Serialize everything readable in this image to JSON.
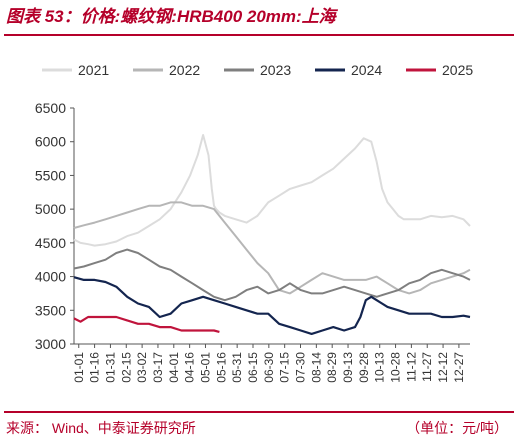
{
  "title": "图表 53：价格:螺纹钢:HRB400 20mm:上海",
  "source": "来源：  Wind、中泰证券研究所",
  "unit": "（单位：元/吨）",
  "colors": {
    "accent": "#b5002a",
    "axis": "#555555",
    "series": {
      "2021": "#dcdcdc",
      "2022": "#b6b6b6",
      "2023": "#7f7f7f",
      "2024": "#14254f",
      "2025": "#c0143c"
    }
  },
  "chart_data": {
    "type": "line",
    "xlabel": "",
    "ylabel": "",
    "ylim": [
      3000,
      6500
    ],
    "yticks": [
      3000,
      3500,
      4000,
      4500,
      5000,
      5500,
      6000,
      6500
    ],
    "x_day_range": [
      1,
      366
    ],
    "x_tick_labels": [
      "01-01",
      "01-16",
      "01-31",
      "02-15",
      "03-02",
      "03-17",
      "04-01",
      "04-16",
      "05-01",
      "05-16",
      "05-31",
      "06-15",
      "06-30",
      "07-15",
      "07-30",
      "08-14",
      "08-29",
      "09-13",
      "09-28",
      "10-13",
      "10-28",
      "11-12",
      "11-27",
      "12-12",
      "12-27"
    ],
    "legend_position": "top",
    "grid": false,
    "series": [
      {
        "name": "2021",
        "x": [
          1,
          7,
          14,
          20,
          30,
          40,
          50,
          60,
          70,
          80,
          90,
          100,
          108,
          115,
          120,
          125,
          128,
          130,
          132,
          135,
          140,
          150,
          160,
          170,
          180,
          190,
          200,
          210,
          220,
          230,
          240,
          250,
          260,
          268,
          275,
          280,
          285,
          290,
          295,
          300,
          305,
          310,
          320,
          330,
          340,
          350,
          360,
          366
        ],
        "values": [
          4550,
          4500,
          4480,
          4460,
          4480,
          4520,
          4600,
          4650,
          4750,
          4850,
          5000,
          5250,
          5500,
          5800,
          6100,
          5800,
          5300,
          5050,
          5000,
          4950,
          4900,
          4850,
          4800,
          4900,
          5100,
          5200,
          5300,
          5350,
          5400,
          5500,
          5600,
          5750,
          5900,
          6050,
          6000,
          5700,
          5300,
          5100,
          5000,
          4900,
          4850,
          4850,
          4850,
          4900,
          4880,
          4900,
          4850,
          4750
        ]
      },
      {
        "name": "2022",
        "x": [
          1,
          10,
          20,
          30,
          40,
          50,
          60,
          70,
          80,
          90,
          100,
          110,
          120,
          130,
          140,
          150,
          160,
          170,
          180,
          190,
          200,
          210,
          220,
          230,
          240,
          250,
          260,
          270,
          280,
          290,
          300,
          310,
          320,
          330,
          340,
          350,
          360,
          366
        ],
        "values": [
          4720,
          4760,
          4800,
          4850,
          4900,
          4950,
          5000,
          5050,
          5050,
          5100,
          5100,
          5050,
          5050,
          5000,
          4800,
          4600,
          4400,
          4200,
          4050,
          3800,
          3750,
          3850,
          3950,
          4050,
          4000,
          3950,
          3950,
          3950,
          4000,
          3900,
          3800,
          3750,
          3800,
          3900,
          3950,
          4000,
          4050,
          4100
        ]
      },
      {
        "name": "2023",
        "x": [
          1,
          10,
          20,
          30,
          40,
          50,
          60,
          70,
          80,
          90,
          100,
          110,
          120,
          130,
          140,
          150,
          160,
          170,
          180,
          190,
          200,
          210,
          220,
          230,
          240,
          250,
          260,
          270,
          280,
          290,
          300,
          310,
          320,
          330,
          340,
          350,
          360,
          366
        ],
        "values": [
          4120,
          4150,
          4200,
          4250,
          4350,
          4400,
          4350,
          4250,
          4150,
          4100,
          4000,
          3900,
          3800,
          3700,
          3650,
          3700,
          3800,
          3850,
          3750,
          3800,
          3900,
          3800,
          3750,
          3750,
          3800,
          3850,
          3800,
          3750,
          3700,
          3750,
          3800,
          3900,
          3950,
          4050,
          4100,
          4050,
          4000,
          3950
        ]
      },
      {
        "name": "2024",
        "x": [
          1,
          10,
          20,
          30,
          40,
          50,
          60,
          70,
          80,
          90,
          100,
          110,
          120,
          130,
          140,
          150,
          160,
          170,
          180,
          190,
          200,
          210,
          220,
          230,
          240,
          250,
          260,
          265,
          270,
          275,
          280,
          290,
          300,
          310,
          320,
          330,
          340,
          350,
          360,
          366
        ],
        "values": [
          3990,
          3950,
          3950,
          3920,
          3850,
          3700,
          3600,
          3550,
          3400,
          3450,
          3600,
          3650,
          3700,
          3650,
          3600,
          3550,
          3500,
          3450,
          3450,
          3300,
          3250,
          3200,
          3150,
          3200,
          3250,
          3200,
          3250,
          3400,
          3650,
          3700,
          3650,
          3550,
          3500,
          3450,
          3450,
          3450,
          3400,
          3400,
          3420,
          3400
        ]
      },
      {
        "name": "2025",
        "x": [
          1,
          7,
          14,
          20,
          30,
          40,
          50,
          60,
          70,
          80,
          90,
          100,
          110,
          120,
          130,
          135
        ],
        "values": [
          3380,
          3330,
          3400,
          3400,
          3400,
          3400,
          3350,
          3300,
          3300,
          3250,
          3250,
          3200,
          3200,
          3200,
          3200,
          3180
        ]
      }
    ]
  }
}
